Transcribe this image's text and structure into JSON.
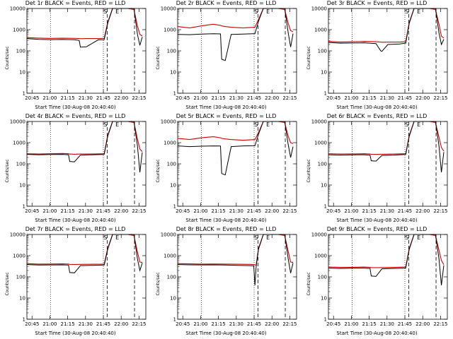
{
  "figure": {
    "xlabel": "Start Time (30-Aug-08 20:40:40)",
    "ylabel": "Counts/sec",
    "ytick_labels": [
      "1",
      "10",
      "100",
      "1000",
      "10000"
    ],
    "colors": {
      "events": "#000000",
      "lld": "#cc0000"
    },
    "event_markers": [
      "S",
      "E"
    ]
  },
  "chart_data": [
    {
      "type": "line",
      "title": "Det 1r BLACK = Events, RED = LLD",
      "xlabel": "Start Time (30-Aug-08 20:40:40)",
      "ylabel": "Counts/sec",
      "x_ticks": [
        "20:45",
        "21:00",
        "21:15",
        "21:30",
        "21:45",
        "22:00",
        "22:15"
      ],
      "x_tick_minutes": [
        4.3,
        19.3,
        34.3,
        49.3,
        64.3,
        79.3,
        94.3
      ],
      "xlim_minutes": [
        0,
        100
      ],
      "ylim": [
        1,
        10000
      ],
      "yscale": "log",
      "series": [
        {
          "name": "BLACK = Events",
          "color": "#000000",
          "x": [
            0,
            10,
            20,
            30,
            40,
            44,
            45,
            50,
            60,
            65,
            68,
            72,
            80,
            85,
            90,
            93,
            95,
            97
          ],
          "y": [
            380,
            350,
            340,
            345,
            335,
            310,
            150,
            155,
            330,
            340,
            2000,
            10000,
            10000,
            10000,
            10000,
            600,
            180,
            450
          ]
        },
        {
          "name": "RED = LLD",
          "color": "#cc0000",
          "x": [
            0,
            10,
            20,
            30,
            40,
            44,
            45,
            50,
            60,
            65,
            68,
            72,
            80,
            85,
            90,
            93,
            95,
            97
          ],
          "y": [
            420,
            400,
            390,
            395,
            390,
            380,
            375,
            380,
            380,
            390,
            2200,
            10000,
            10000,
            10000,
            9000,
            1500,
            600,
            500
          ]
        }
      ]
    },
    {
      "type": "line",
      "title": "Det 2r BLACK = Events, RED = LLD",
      "xlabel": "Start Time (30-Aug-08 20:40:40)",
      "ylabel": "Counts/sec",
      "x_ticks": [
        "20:45",
        "21:00",
        "21:15",
        "21:30",
        "21:45",
        "22:00",
        "22:15"
      ],
      "x_tick_minutes": [
        4.3,
        19.3,
        34.3,
        49.3,
        64.3,
        79.3,
        94.3
      ],
      "xlim_minutes": [
        0,
        100
      ],
      "ylim": [
        1,
        10000
      ],
      "yscale": "log",
      "series": [
        {
          "name": "BLACK = Events",
          "color": "#000000",
          "x": [
            0,
            10,
            20,
            30,
            36,
            37,
            40,
            45,
            55,
            65,
            68,
            72,
            80,
            85,
            90,
            93,
            95,
            97
          ],
          "y": [
            600,
            580,
            620,
            640,
            630,
            40,
            35,
            600,
            620,
            650,
            2500,
            10000,
            10000,
            10000,
            10000,
            700,
            150,
            650
          ]
        },
        {
          "name": "RED = LLD",
          "color": "#cc0000",
          "x": [
            0,
            10,
            20,
            30,
            36,
            37,
            40,
            45,
            55,
            65,
            68,
            72,
            80,
            85,
            90,
            93,
            95,
            97
          ],
          "y": [
            1400,
            1200,
            1500,
            1800,
            1600,
            1500,
            1400,
            1300,
            1200,
            1300,
            3000,
            10000,
            10000,
            10000,
            9000,
            2000,
            900,
            800
          ]
        }
      ]
    },
    {
      "type": "line",
      "title": "Det 3r BLACK = Events, RED = LLD",
      "xlabel": "Start Time (30-Aug-08 20:40:40)",
      "ylabel": "Counts/sec",
      "x_ticks": [
        "20:45",
        "21:00",
        "21:15",
        "21:30",
        "21:45",
        "22:00",
        "22:15"
      ],
      "x_tick_minutes": [
        4.3,
        19.3,
        34.3,
        49.3,
        64.3,
        79.3,
        94.3
      ],
      "xlim_minutes": [
        0,
        100
      ],
      "ylim": [
        1,
        10000
      ],
      "yscale": "log",
      "series": [
        {
          "name": "BLACK = Events",
          "color": "#000000",
          "x": [
            0,
            10,
            20,
            30,
            40,
            44,
            45,
            50,
            60,
            65,
            68,
            72,
            80,
            85,
            90,
            93,
            95,
            97
          ],
          "y": [
            250,
            230,
            235,
            240,
            220,
            100,
            95,
            200,
            210,
            230,
            2000,
            10000,
            10000,
            10000,
            10000,
            700,
            200,
            350
          ]
        },
        {
          "name": "RED = LLD",
          "color": "#cc0000",
          "x": [
            0,
            10,
            20,
            30,
            40,
            44,
            45,
            50,
            60,
            65,
            68,
            72,
            80,
            85,
            90,
            93,
            95,
            97
          ],
          "y": [
            280,
            260,
            270,
            280,
            270,
            260,
            255,
            260,
            260,
            270,
            2200,
            10000,
            10000,
            10000,
            9000,
            1800,
            500,
            400
          ]
        }
      ]
    },
    {
      "type": "line",
      "title": "Det 4r BLACK = Events, RED = LLD",
      "xlabel": "Start Time (30-Aug-08 20:40:40)",
      "ylabel": "Counts/sec",
      "x_ticks": [
        "20:45",
        "21:00",
        "21:15",
        "21:30",
        "21:45",
        "22:00",
        "22:15"
      ],
      "x_tick_minutes": [
        4.3,
        19.3,
        34.3,
        49.3,
        64.3,
        79.3,
        94.3
      ],
      "xlim_minutes": [
        0,
        100
      ],
      "ylim": [
        1,
        10000
      ],
      "yscale": "log",
      "series": [
        {
          "name": "BLACK = Events",
          "color": "#000000",
          "x": [
            0,
            10,
            20,
            30,
            35,
            36,
            40,
            45,
            55,
            65,
            68,
            72,
            80,
            85,
            90,
            93,
            95,
            97
          ],
          "y": [
            280,
            270,
            275,
            280,
            270,
            130,
            125,
            260,
            270,
            280,
            2000,
            10000,
            10000,
            10000,
            10000,
            700,
            40,
            350
          ]
        },
        {
          "name": "RED = LLD",
          "color": "#cc0000",
          "x": [
            0,
            10,
            20,
            30,
            35,
            36,
            40,
            45,
            55,
            65,
            68,
            72,
            80,
            85,
            90,
            93,
            95,
            97
          ],
          "y": [
            300,
            290,
            300,
            310,
            300,
            290,
            285,
            290,
            290,
            300,
            2200,
            10000,
            10000,
            10000,
            9000,
            1500,
            500,
            380
          ]
        }
      ]
    },
    {
      "type": "line",
      "title": "Det 5r BLACK = Events, RED = LLD",
      "xlabel": "Start Time (30-Aug-08 20:40:40)",
      "ylabel": "Counts/sec",
      "x_ticks": [
        "20:45",
        "21:00",
        "21:15",
        "21:30",
        "21:45",
        "22:00",
        "22:15"
      ],
      "x_tick_minutes": [
        4.3,
        19.3,
        34.3,
        49.3,
        64.3,
        79.3,
        94.3
      ],
      "xlim_minutes": [
        0,
        100
      ],
      "ylim": [
        1,
        10000
      ],
      "yscale": "log",
      "series": [
        {
          "name": "BLACK = Events",
          "color": "#000000",
          "x": [
            0,
            10,
            20,
            30,
            36,
            37,
            40,
            45,
            55,
            65,
            68,
            72,
            80,
            85,
            90,
            93,
            95,
            97
          ],
          "y": [
            700,
            650,
            680,
            700,
            690,
            35,
            30,
            650,
            700,
            720,
            2500,
            10000,
            10000,
            10000,
            10000,
            800,
            200,
            650
          ]
        },
        {
          "name": "RED = LLD",
          "color": "#cc0000",
          "x": [
            0,
            10,
            20,
            30,
            36,
            37,
            40,
            45,
            55,
            65,
            68,
            72,
            80,
            85,
            90,
            93,
            95,
            97
          ],
          "y": [
            1600,
            1400,
            1700,
            1900,
            1700,
            1600,
            1500,
            1400,
            1300,
            1400,
            3000,
            10000,
            10000,
            10000,
            9000,
            2000,
            1000,
            900
          ]
        }
      ]
    },
    {
      "type": "line",
      "title": "Det 6r BLACK = Events, RED = LLD",
      "xlabel": "Start Time (30-Aug-08 20:40:40)",
      "ylabel": "Counts/sec",
      "x_ticks": [
        "20:45",
        "21:00",
        "21:15",
        "21:30",
        "21:45",
        "22:00",
        "22:15"
      ],
      "x_tick_minutes": [
        4.3,
        19.3,
        34.3,
        49.3,
        64.3,
        79.3,
        94.3
      ],
      "xlim_minutes": [
        0,
        100
      ],
      "ylim": [
        1,
        10000
      ],
      "yscale": "log",
      "series": [
        {
          "name": "BLACK = Events",
          "color": "#000000",
          "x": [
            0,
            10,
            20,
            30,
            35,
            36,
            40,
            45,
            55,
            65,
            68,
            72,
            80,
            85,
            90,
            93,
            95,
            97
          ],
          "y": [
            270,
            260,
            265,
            270,
            260,
            140,
            135,
            250,
            260,
            280,
            2000,
            10000,
            10000,
            10000,
            10000,
            700,
            40,
            360
          ]
        },
        {
          "name": "RED = LLD",
          "color": "#cc0000",
          "x": [
            0,
            10,
            20,
            30,
            35,
            36,
            40,
            45,
            55,
            65,
            68,
            72,
            80,
            85,
            90,
            93,
            95,
            97
          ],
          "y": [
            300,
            290,
            295,
            300,
            290,
            285,
            280,
            285,
            290,
            300,
            2200,
            10000,
            10000,
            10000,
            9000,
            1800,
            600,
            400
          ]
        }
      ]
    },
    {
      "type": "line",
      "title": "Det 7r BLACK = Events, RED = LLD",
      "xlabel": "Start Time (30-Aug-08 20:40:40)",
      "ylabel": "Counts/sec",
      "x_ticks": [
        "20:45",
        "21:00",
        "21:15",
        "21:30",
        "21:45",
        "22:00",
        "22:15"
      ],
      "x_tick_minutes": [
        4.3,
        19.3,
        34.3,
        49.3,
        64.3,
        79.3,
        94.3
      ],
      "xlim_minutes": [
        0,
        100
      ],
      "ylim": [
        1,
        10000
      ],
      "yscale": "log",
      "series": [
        {
          "name": "BLACK = Events",
          "color": "#000000",
          "x": [
            0,
            10,
            20,
            30,
            35,
            36,
            40,
            45,
            55,
            65,
            68,
            72,
            80,
            85,
            90,
            93,
            95,
            97
          ],
          "y": [
            380,
            360,
            365,
            370,
            360,
            160,
            155,
            340,
            350,
            360,
            2000,
            10000,
            10000,
            10000,
            10000,
            700,
            200,
            450
          ]
        },
        {
          "name": "RED = LLD",
          "color": "#cc0000",
          "x": [
            0,
            10,
            20,
            30,
            35,
            36,
            40,
            45,
            55,
            65,
            68,
            72,
            80,
            85,
            90,
            93,
            95,
            97
          ],
          "y": [
            420,
            400,
            405,
            410,
            400,
            390,
            385,
            390,
            395,
            400,
            2200,
            10000,
            10000,
            10000,
            9000,
            1500,
            500,
            480
          ]
        }
      ]
    },
    {
      "type": "line",
      "title": "Det 8r BLACK = Events, RED = LLD",
      "xlabel": "Start Time (30-Aug-08 20:40:40)",
      "ylabel": "Counts/sec",
      "x_ticks": [
        "20:45",
        "21:00",
        "21:15",
        "21:30",
        "21:45",
        "22:00",
        "22:15"
      ],
      "x_tick_minutes": [
        4.3,
        19.3,
        34.3,
        49.3,
        64.3,
        79.3,
        94.3
      ],
      "xlim_minutes": [
        0,
        100
      ],
      "ylim": [
        1,
        10000
      ],
      "yscale": "log",
      "series": [
        {
          "name": "BLACK = Events",
          "color": "#000000",
          "x": [
            0,
            10,
            20,
            30,
            40,
            50,
            60,
            64,
            65,
            66,
            68,
            72,
            80,
            85,
            90,
            93,
            95,
            97
          ],
          "y": [
            380,
            370,
            365,
            370,
            360,
            350,
            340,
            330,
            40,
            300,
            2000,
            10000,
            10000,
            10000,
            10000,
            700,
            150,
            450
          ]
        },
        {
          "name": "RED = LLD",
          "color": "#cc0000",
          "x": [
            0,
            10,
            20,
            30,
            40,
            50,
            60,
            64,
            65,
            66,
            68,
            72,
            80,
            85,
            90,
            93,
            95,
            97
          ],
          "y": [
            420,
            410,
            400,
            405,
            400,
            395,
            390,
            380,
            360,
            370,
            2200,
            10000,
            10000,
            10000,
            9000,
            1600,
            500,
            480
          ]
        }
      ]
    },
    {
      "type": "line",
      "title": "Det 9r BLACK = Events, RED = LLD",
      "xlabel": "Start Time (30-Aug-08 20:40:40)",
      "ylabel": "Counts/sec",
      "x_ticks": [
        "20:45",
        "21:00",
        "21:15",
        "21:30",
        "21:45",
        "22:00",
        "22:15"
      ],
      "x_tick_minutes": [
        4.3,
        19.3,
        34.3,
        49.3,
        64.3,
        79.3,
        94.3
      ],
      "xlim_minutes": [
        0,
        100
      ],
      "ylim": [
        1,
        10000
      ],
      "yscale": "log",
      "series": [
        {
          "name": "BLACK = Events",
          "color": "#000000",
          "x": [
            0,
            10,
            20,
            30,
            35,
            36,
            40,
            45,
            55,
            65,
            68,
            72,
            80,
            85,
            90,
            93,
            95,
            97
          ],
          "y": [
            260,
            250,
            255,
            260,
            250,
            110,
            105,
            240,
            250,
            260,
            2000,
            10000,
            10000,
            10000,
            10000,
            700,
            40,
            350
          ]
        },
        {
          "name": "RED = LLD",
          "color": "#cc0000",
          "x": [
            0,
            10,
            20,
            30,
            35,
            36,
            40,
            45,
            55,
            65,
            68,
            72,
            80,
            85,
            90,
            93,
            95,
            97
          ],
          "y": [
            290,
            280,
            285,
            290,
            280,
            275,
            270,
            275,
            280,
            290,
            2200,
            10000,
            10000,
            10000,
            9000,
            1800,
            600,
            380
          ]
        }
      ]
    }
  ]
}
